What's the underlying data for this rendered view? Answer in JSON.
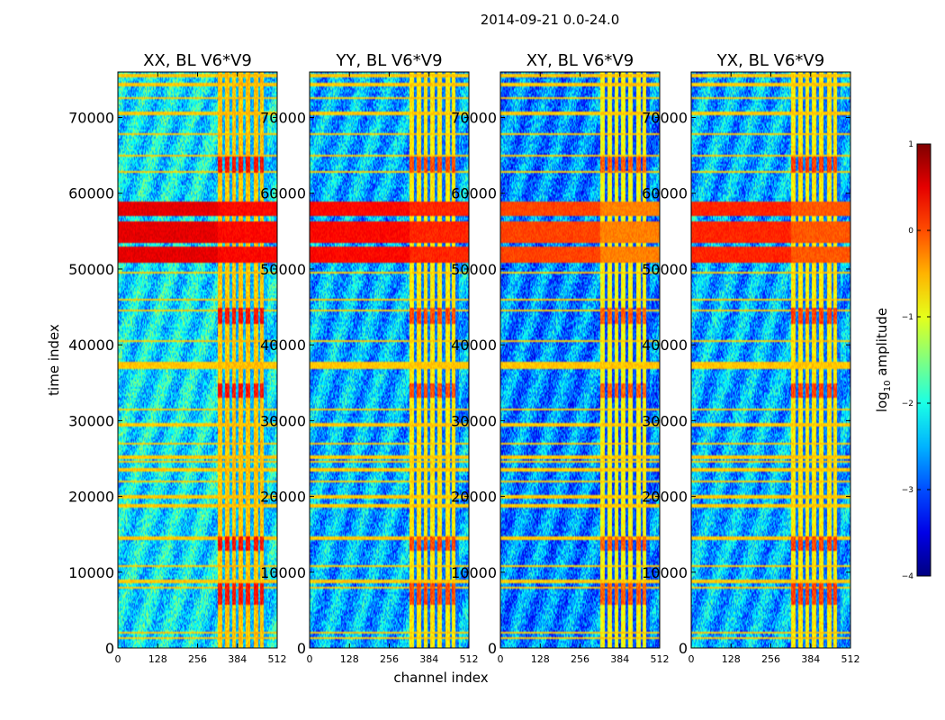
{
  "figure": {
    "suptitle": "2014-09-21 0.0-24.0",
    "xlabel": "channel index",
    "ylabel": "time index"
  },
  "colorbar": {
    "label_prefix": "log",
    "label_sub": "10",
    "label_suffix": " amplitude",
    "range": [
      -4,
      1
    ],
    "ticks": [
      {
        "value": 1,
        "label": "1"
      },
      {
        "value": 0,
        "label": "0"
      },
      {
        "value": -1,
        "label": "−1"
      },
      {
        "value": -2,
        "label": "−2"
      },
      {
        "value": -3,
        "label": "−3"
      },
      {
        "value": -4,
        "label": "−4"
      }
    ],
    "colormap": "jet"
  },
  "chart_data": {
    "type": "heatmap",
    "title": "2014-09-21 0.0-24.0",
    "xlabel": "channel index",
    "ylabel": "time index",
    "xlim": [
      0,
      512
    ],
    "ylim": [
      0,
      76000
    ],
    "xticks": [
      0,
      128,
      256,
      384,
      512
    ],
    "xtick_labels": [
      "0",
      "128",
      "256",
      "384",
      "512"
    ],
    "yticks": [
      0,
      10000,
      20000,
      30000,
      40000,
      50000,
      60000,
      70000
    ],
    "ytick_labels": [
      "0",
      "10000",
      "20000",
      "30000",
      "40000",
      "50000",
      "60000",
      "70000"
    ],
    "value_label": "log10 amplitude",
    "vmin": -4,
    "vmax": 1,
    "panels": [
      {
        "id": "XX",
        "title": "XX, BL V6*V9",
        "background": -2.2,
        "band": -0.6,
        "strong_band": 0.3,
        "rfi_high": 0.5,
        "rfi_mid": 0.35
      },
      {
        "id": "YY",
        "title": "YY, BL V6*V9",
        "background": -2.5,
        "band": -0.8,
        "strong_band": 0.0,
        "rfi_high": 0.35,
        "rfi_mid": 0.2
      },
      {
        "id": "XY",
        "title": "XY, BL V6*V9",
        "background": -2.7,
        "band": -0.9,
        "strong_band": -0.1,
        "rfi_high": 0.05,
        "rfi_mid": -0.25
      },
      {
        "id": "YX",
        "title": "YX, BL V6*V9",
        "background": -2.5,
        "band": -0.8,
        "strong_band": 0.05,
        "rfi_high": 0.2,
        "rfi_mid": -0.05
      }
    ],
    "band_channels": [
      [
        320,
        335
      ],
      [
        345,
        360
      ],
      [
        368,
        380
      ],
      [
        388,
        402
      ],
      [
        412,
        425
      ],
      [
        438,
        450
      ],
      [
        458,
        470
      ]
    ],
    "rfi_strong_rows": [
      [
        50800,
        53000
      ],
      [
        53500,
        56200
      ],
      [
        57000,
        59000
      ]
    ],
    "strong_band_rows": [
      [
        42800,
        44800
      ],
      [
        62800,
        64800
      ],
      [
        5800,
        8500
      ],
      [
        12800,
        14800
      ],
      [
        33000,
        35000
      ]
    ],
    "line_rows": [
      1300,
      2000,
      8000,
      8800,
      10800,
      14500,
      18800,
      20000,
      22000,
      23500,
      24600,
      25200,
      27000,
      29500,
      31500,
      37000,
      37500,
      40500,
      44500,
      46000,
      49500,
      62800,
      65000,
      67800,
      70500,
      72500,
      74300,
      75500
    ]
  }
}
